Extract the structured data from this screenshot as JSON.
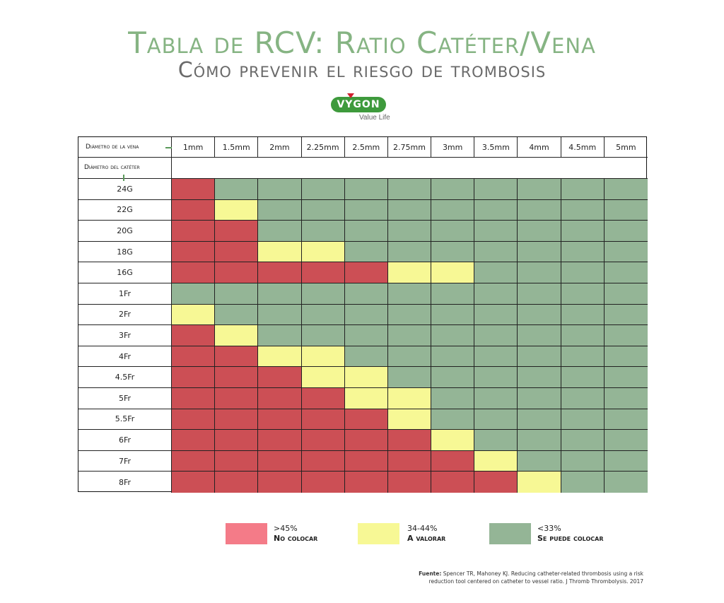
{
  "header": {
    "title": "Tabla de RCV: Ratio Catéter/Vena",
    "subtitle": "Cómo prevenir el riesgo de trombosis"
  },
  "logo": {
    "brand": "VYGON",
    "tagline": "Value Life"
  },
  "table": {
    "vein_header": "Diámetro de la vena",
    "catheter_header": "Diámetro del catéter",
    "vein_sizes": [
      "1mm",
      "1.5mm",
      "2mm",
      "2.25mm",
      "2.5mm",
      "2.75mm",
      "3mm",
      "3.5mm",
      "4mm",
      "4.5mm",
      "5mm"
    ],
    "catheter_sizes": [
      "24G",
      "22G",
      "20G",
      "18G",
      "16G",
      "1Fr",
      "2Fr",
      "3Fr",
      "4Fr",
      "4.5Fr",
      "5Fr",
      "5.5Fr",
      "6Fr",
      "7Fr",
      "8Fr"
    ],
    "colors": {
      "red": "#cc4f55",
      "yellow": "#f7f895",
      "green": "#94b596"
    },
    "matrix": [
      [
        "red",
        "green",
        "green",
        "green",
        "green",
        "green",
        "green",
        "green",
        "green",
        "green",
        "green"
      ],
      [
        "red",
        "yellow",
        "green",
        "green",
        "green",
        "green",
        "green",
        "green",
        "green",
        "green",
        "green"
      ],
      [
        "red",
        "red",
        "green",
        "green",
        "green",
        "green",
        "green",
        "green",
        "green",
        "green",
        "green"
      ],
      [
        "red",
        "red",
        "yellow",
        "yellow",
        "green",
        "green",
        "green",
        "green",
        "green",
        "green",
        "green"
      ],
      [
        "red",
        "red",
        "red",
        "red",
        "red",
        "yellow",
        "yellow",
        "green",
        "green",
        "green",
        "green"
      ],
      [
        "green",
        "green",
        "green",
        "green",
        "green",
        "green",
        "green",
        "green",
        "green",
        "green",
        "green"
      ],
      [
        "yellow",
        "green",
        "green",
        "green",
        "green",
        "green",
        "green",
        "green",
        "green",
        "green",
        "green"
      ],
      [
        "red",
        "yellow",
        "green",
        "green",
        "green",
        "green",
        "green",
        "green",
        "green",
        "green",
        "green"
      ],
      [
        "red",
        "red",
        "yellow",
        "yellow",
        "green",
        "green",
        "green",
        "green",
        "green",
        "green",
        "green"
      ],
      [
        "red",
        "red",
        "red",
        "yellow",
        "yellow",
        "green",
        "green",
        "green",
        "green",
        "green",
        "green"
      ],
      [
        "red",
        "red",
        "red",
        "red",
        "yellow",
        "yellow",
        "green",
        "green",
        "green",
        "green",
        "green"
      ],
      [
        "red",
        "red",
        "red",
        "red",
        "red",
        "yellow",
        "green",
        "green",
        "green",
        "green",
        "green"
      ],
      [
        "red",
        "red",
        "red",
        "red",
        "red",
        "red",
        "yellow",
        "green",
        "green",
        "green",
        "green"
      ],
      [
        "red",
        "red",
        "red",
        "red",
        "red",
        "red",
        "red",
        "yellow",
        "green",
        "green",
        "green"
      ],
      [
        "red",
        "red",
        "red",
        "red",
        "red",
        "red",
        "red",
        "red",
        "yellow",
        "green",
        "green"
      ]
    ]
  },
  "legend": [
    {
      "range": ">45%",
      "label": "No colocar",
      "color": "#f47b88"
    },
    {
      "range": "34-44%",
      "label": "A valorar",
      "color": "#f7f895"
    },
    {
      "range": "<33%",
      "label": "Se puede colocar",
      "color": "#94b596"
    }
  ],
  "source": {
    "label": "Fuente:",
    "text": "Spencer TR, Mahoney KJ. Reducing catheter-related thrombosis using a risk reduction tool centered on catheter to vessel ratio. J Thromb Thrombolysis. 2017"
  }
}
